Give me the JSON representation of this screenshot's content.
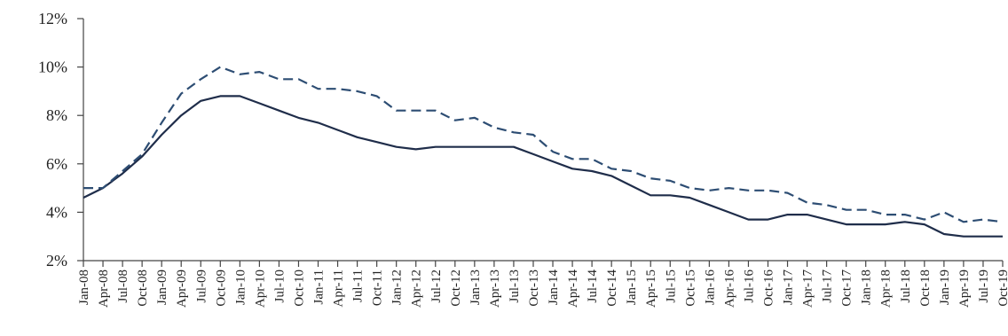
{
  "chart_data": {
    "type": "line",
    "title": "",
    "xlabel": "",
    "ylabel": "",
    "categories": [
      "Jan-08",
      "Apr-08",
      "Jul-08",
      "Oct-08",
      "Jan-09",
      "Apr-09",
      "Jul-09",
      "Oct-09",
      "Jan-10",
      "Apr-10",
      "Jul-10",
      "Oct-10",
      "Jan-11",
      "Apr-11",
      "Jul-11",
      "Oct-11",
      "Jan-12",
      "Apr-12",
      "Jul-12",
      "Oct-12",
      "Jan-13",
      "Apr-13",
      "Jul-13",
      "Oct-13",
      "Jan-14",
      "Apr-14",
      "Jul-14",
      "Oct-14",
      "Jan-15",
      "Apr-15",
      "Jul-15",
      "Oct-15",
      "Jan-16",
      "Apr-16",
      "Jul-16",
      "Oct-16",
      "Jan-17",
      "Apr-17",
      "Jul-17",
      "Oct-17",
      "Jan-18",
      "Apr-18",
      "Jul-18",
      "Oct-18",
      "Jan-19",
      "Apr-19",
      "Jul-19",
      "Oct-19"
    ],
    "ylim": [
      2,
      12
    ],
    "yticks": [
      "2%",
      "4%",
      "6%",
      "8%",
      "10%",
      "12%"
    ],
    "ytick_values": [
      2,
      4,
      6,
      8,
      10,
      12
    ],
    "grid": false,
    "legend": "none",
    "series": [
      {
        "style": "solid",
        "color": "#1f2d4a",
        "values": [
          4.6,
          5.0,
          5.6,
          6.3,
          7.2,
          8.0,
          8.6,
          8.8,
          8.8,
          8.5,
          8.2,
          7.9,
          7.7,
          7.4,
          7.1,
          6.9,
          6.7,
          6.6,
          6.7,
          6.7,
          6.7,
          6.7,
          6.7,
          6.4,
          6.1,
          5.8,
          5.7,
          5.5,
          5.1,
          4.7,
          4.7,
          4.6,
          4.3,
          4.0,
          3.7,
          3.7,
          3.9,
          3.9,
          3.7,
          3.5,
          3.5,
          3.5,
          3.6,
          3.5,
          3.1,
          3.0,
          3.0,
          3.0
        ]
      },
      {
        "style": "dashed",
        "color": "#2d4d73",
        "values": [
          5.0,
          5.0,
          5.7,
          6.4,
          7.7,
          8.9,
          9.5,
          10.0,
          9.7,
          9.8,
          9.5,
          9.5,
          9.1,
          9.1,
          9.0,
          8.8,
          8.2,
          8.2,
          8.2,
          7.8,
          7.9,
          7.5,
          7.3,
          7.2,
          6.5,
          6.2,
          6.2,
          5.8,
          5.7,
          5.4,
          5.3,
          5.0,
          4.9,
          5.0,
          4.9,
          4.9,
          4.8,
          4.4,
          4.3,
          4.1,
          4.1,
          3.9,
          3.9,
          3.7,
          4.0,
          3.6,
          3.7,
          3.6
        ]
      }
    ]
  }
}
